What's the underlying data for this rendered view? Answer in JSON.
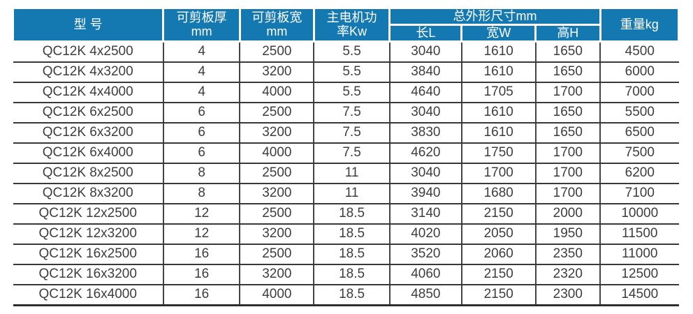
{
  "colors": {
    "header_background": "#1478b1",
    "header_text": "#ffffff",
    "body_text": "#3d3d3d",
    "grid_line": "#383838"
  },
  "table": {
    "header": {
      "model": "型 号",
      "thickness_line1": "可剪板厚",
      "thickness_line2": "mm",
      "plate_width_line1": "可剪板宽",
      "plate_width_line2": "mm",
      "motor_power_line1": "主电机功",
      "motor_power_line2": "率Kw",
      "dimensions_group": "总外形尺寸mm",
      "dim_length": "长L",
      "dim_width": "宽W",
      "dim_height": "高H",
      "weight": "重量kg"
    },
    "rows": [
      [
        "QC12K 4x2500",
        "4",
        "2500",
        "5.5",
        "3040",
        "1610",
        "1650",
        "4500"
      ],
      [
        "QC12K 4x3200",
        "4",
        "3200",
        "5.5",
        "3840",
        "1610",
        "1650",
        "6000"
      ],
      [
        "QC12K 4x4000",
        "4",
        "4000",
        "5.5",
        "4640",
        "1705",
        "1700",
        "7000"
      ],
      [
        "QC12K 6x2500",
        "6",
        "2500",
        "7.5",
        "3040",
        "1610",
        "1650",
        "5500"
      ],
      [
        "QC12K 6x3200",
        "6",
        "3200",
        "7.5",
        "3830",
        "1610",
        "1650",
        "6500"
      ],
      [
        "QC12K 6x4000",
        "6",
        "4000",
        "7.5",
        "4620",
        "1750",
        "1700",
        "7500"
      ],
      [
        "QC12K 8x2500",
        "8",
        "2500",
        "11",
        "3040",
        "1700",
        "1700",
        "6200"
      ],
      [
        "QC12K 8x3200",
        "8",
        "3200",
        "11",
        "3940",
        "1680",
        "1700",
        "7100"
      ],
      [
        "QC12K 12x2500",
        "12",
        "2500",
        "18.5",
        "3140",
        "2150",
        "2000",
        "10000"
      ],
      [
        "QC12K 12x3200",
        "12",
        "3200",
        "18.5",
        "4020",
        "2050",
        "1950",
        "11500"
      ],
      [
        "QC12K 16x2500",
        "16",
        "2500",
        "18.5",
        "3520",
        "2060",
        "2350",
        "11000"
      ],
      [
        "QC12K 16x3200",
        "16",
        "3200",
        "18.5",
        "4060",
        "2150",
        "2320",
        "12500"
      ],
      [
        "QC12K 16x4000",
        "16",
        "4000",
        "18.5",
        "4850",
        "2150",
        "2300",
        "14500"
      ]
    ],
    "column_keys": [
      "model",
      "thickness",
      "plate-width",
      "motor-power",
      "length",
      "width",
      "height",
      "weight"
    ]
  }
}
